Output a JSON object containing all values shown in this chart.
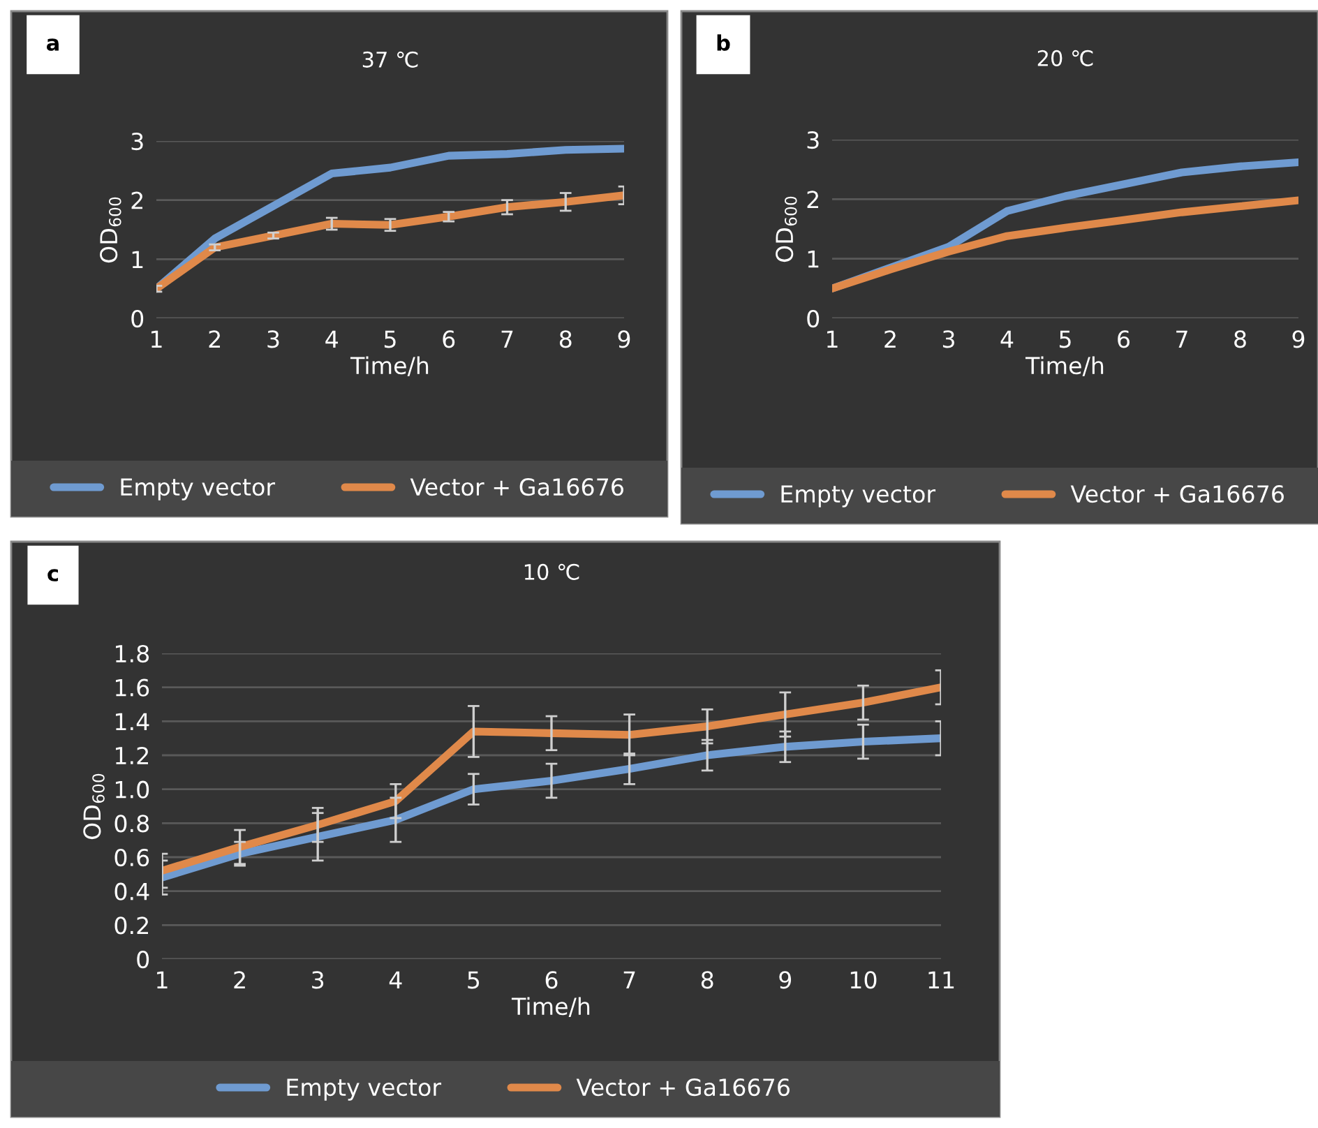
{
  "chart_data": [
    {
      "type": "line",
      "title": "37 ℃",
      "xlabel": "Time/h",
      "ylabel": "OD$_{600}$",
      "annotations": [
        "a"
      ],
      "categories": [
        "1",
        "2",
        "3",
        "4",
        "5",
        "6",
        "7",
        "8",
        "9"
      ],
      "ylim": [
        0,
        3
      ],
      "yticks": [
        0,
        1,
        2,
        3
      ],
      "grid": "y",
      "legend": "bottom",
      "marker": "none",
      "line_style": "solid",
      "series": [
        {
          "name": "Empty vector",
          "color": "#6f9bd1",
          "values": [
            0.5,
            1.35,
            1.9,
            2.45,
            2.55,
            2.75,
            2.78,
            2.85,
            2.87
          ]
        },
        {
          "name": "Vector + Ga16676",
          "color": "#e0894a",
          "values": [
            0.5,
            1.2,
            1.4,
            1.6,
            1.58,
            1.72,
            1.88,
            1.97,
            2.08
          ],
          "errors": [
            0.05,
            0.05,
            0.05,
            0.1,
            0.1,
            0.08,
            0.12,
            0.15,
            0.15
          ]
        }
      ]
    },
    {
      "type": "line",
      "title": "20 ℃",
      "xlabel": "Time/h",
      "ylabel": "OD$_{600}$",
      "annotations": [
        "b"
      ],
      "categories": [
        "1",
        "2",
        "3",
        "4",
        "5",
        "6",
        "7",
        "8",
        "9"
      ],
      "ylim": [
        0,
        3
      ],
      "yticks": [
        0,
        1,
        2,
        3
      ],
      "grid": "y",
      "legend": "bottom",
      "marker": "none",
      "line_style": "solid",
      "series": [
        {
          "name": "Empty vector",
          "color": "#6f9bd1",
          "values": [
            0.5,
            0.85,
            1.2,
            1.8,
            2.05,
            2.25,
            2.45,
            2.55,
            2.62
          ]
        },
        {
          "name": "Vector + Ga16676",
          "color": "#e0894a",
          "values": [
            0.5,
            0.82,
            1.12,
            1.38,
            1.52,
            1.65,
            1.78,
            1.88,
            1.98
          ]
        }
      ]
    },
    {
      "type": "line",
      "title": "10 ℃",
      "xlabel": "Time/h",
      "ylabel": "OD$_{600}$",
      "annotations": [
        "c"
      ],
      "categories": [
        "1",
        "2",
        "3",
        "4",
        "5",
        "6",
        "7",
        "8",
        "9",
        "10",
        "11"
      ],
      "ylim": [
        0,
        1.8
      ],
      "yticks": [
        0,
        0.2,
        0.4,
        0.6,
        0.8,
        {
          "value": 1,
          "label": "1.0"
        },
        1.2,
        1.4,
        1.6,
        1.8
      ],
      "grid": "y",
      "legend": "bottom",
      "marker": "none",
      "line_style": "solid",
      "series": [
        {
          "name": "Empty vector",
          "color": "#6f9bd1",
          "values": [
            0.48,
            0.62,
            0.72,
            0.82,
            1.0,
            1.05,
            1.12,
            1.2,
            1.25,
            1.28,
            1.3
          ],
          "errors": [
            0.1,
            0.07,
            0.14,
            0.13,
            0.09,
            0.1,
            0.09,
            0.09,
            0.09,
            0.1,
            0.1
          ]
        },
        {
          "name": "Vector + Ga16676",
          "color": "#e0894a",
          "values": [
            0.52,
            0.66,
            0.79,
            0.93,
            1.34,
            1.33,
            1.32,
            1.37,
            1.44,
            1.51,
            1.6
          ],
          "errors": [
            0.1,
            0.1,
            0.1,
            0.1,
            0.15,
            0.1,
            0.12,
            0.1,
            0.13,
            0.1,
            0.1
          ]
        }
      ]
    }
  ]
}
